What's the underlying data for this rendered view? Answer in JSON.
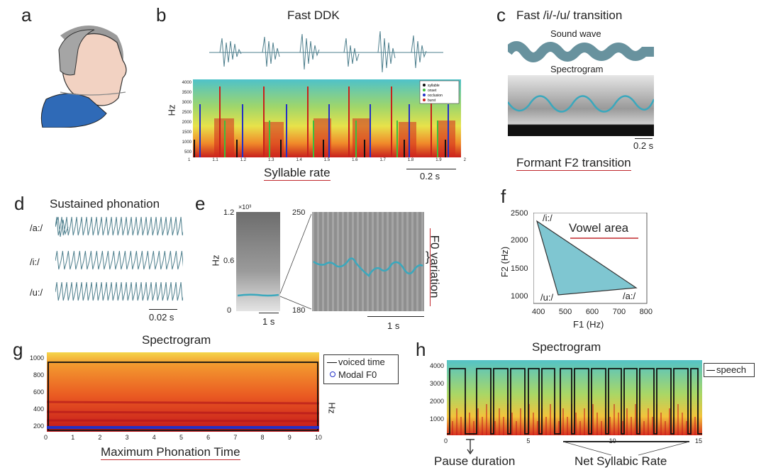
{
  "panels": {
    "a": {
      "label": "a"
    },
    "b": {
      "label": "b",
      "title": "Fast DDK",
      "ylabel": "Hz",
      "yticks": [
        "4000",
        "3500",
        "3000",
        "2500",
        "2000",
        "1500",
        "1000",
        "500"
      ],
      "xticks": [
        "1",
        "1.1",
        "1.2",
        "1.3",
        "1.4",
        "1.5",
        "1.6",
        "1.7",
        "1.8",
        "1.9",
        "2"
      ],
      "legend": [
        "syllable",
        "onset",
        "occlusion",
        "burst"
      ],
      "caption": "Syllable rate",
      "scalebar": "0.2 s"
    },
    "c": {
      "label": "c",
      "title": "Fast /i/-/u/ transition",
      "sound_wave_label": "Sound wave",
      "spectrogram_label": "Spectrogram",
      "scalebar": "0.2 s",
      "caption": "Formant F2 transition"
    },
    "d": {
      "label": "d",
      "title": "Sustained phonation",
      "rows": [
        "/a:/",
        "/i:/",
        "/u:/"
      ],
      "scalebar": "0.02 s"
    },
    "e": {
      "label": "e",
      "ylabel": "Hz",
      "exponent": "×10³",
      "left_yticks": [
        "1.2",
        "0.6",
        "0"
      ],
      "right_yticks": [
        "250",
        "180"
      ],
      "scalebar_left": "1 s",
      "scalebar_right": "1 s",
      "caption": "F0 variation"
    },
    "f": {
      "label": "f",
      "xlabel": "F1 (Hz)",
      "ylabel": "F2 (Hz)",
      "xticks": [
        "400",
        "500",
        "600",
        "700",
        "800"
      ],
      "yticks": [
        "2500",
        "2000",
        "1500",
        "1000"
      ],
      "vowels": [
        "/i:/",
        "/u:/",
        "/a:/"
      ],
      "caption": "Vowel area"
    },
    "g": {
      "label": "g",
      "title": "Spectrogram",
      "ylabel": "Hz",
      "yticks": [
        "1000",
        "800",
        "600",
        "400",
        "200"
      ],
      "xticks": [
        "0",
        "1",
        "2",
        "3",
        "4",
        "5",
        "6",
        "7",
        "8",
        "9",
        "10"
      ],
      "legend": [
        "voiced time",
        "Modal F0"
      ],
      "caption": "Maximum Phonation Time"
    },
    "h": {
      "label": "h",
      "title": "Spectrogram",
      "yticks": [
        "4000",
        "3000",
        "2000",
        "1000"
      ],
      "xticks": [
        "0",
        "5",
        "10",
        "15"
      ],
      "legend": [
        "speech"
      ],
      "caption_left": "Pause duration",
      "caption_right": "Net Syllabic Rate"
    }
  },
  "colors": {
    "accent_red": "#c0282d",
    "teal": "#3aa8bd",
    "wave": "#4e7f8d",
    "vowel_fill": "#7fc6d1"
  }
}
